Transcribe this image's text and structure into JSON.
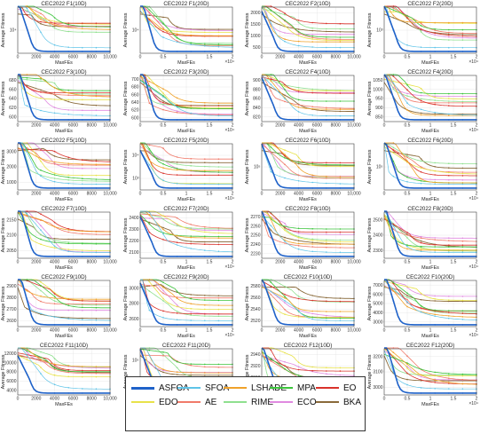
{
  "algorithms": [
    {
      "name": "ASFOA",
      "color": "#1f62c9",
      "width": 1.6
    },
    {
      "name": "SFOA",
      "color": "#5fc4e8",
      "width": 0.7
    },
    {
      "name": "LSHADE",
      "color": "#f0a22a",
      "width": 0.8
    },
    {
      "name": "MPA",
      "color": "#3cc43c",
      "width": 0.8
    },
    {
      "name": "EO",
      "color": "#d9322b",
      "width": 0.8
    },
    {
      "name": "EDO",
      "color": "#e8e24a",
      "width": 0.8
    },
    {
      "name": "AE",
      "color": "#f07a6a",
      "width": 0.8
    },
    {
      "name": "RIME",
      "color": "#8fe08f",
      "width": 0.8
    },
    {
      "name": "ECO",
      "color": "#e08ae0",
      "width": 0.8
    },
    {
      "name": "BKA",
      "color": "#8a6a3a",
      "width": 0.9
    }
  ],
  "chart_data": [
    {
      "type": "line",
      "title": "CEC2022  F1(10D)",
      "xlabel": "MaxFEs",
      "ylabel": "Average Fitness",
      "xlim": [
        0,
        10000
      ],
      "xticks": [
        "0",
        "2000",
        "4000",
        "6000",
        "8000",
        "10,000"
      ],
      "yscale": "log",
      "yticks": [
        "10⁴"
      ],
      "xexp": ""
    },
    {
      "type": "line",
      "title": "CEC2022  F1(20D)",
      "xlabel": "MaxFEs",
      "ylabel": "Average Fitness",
      "xlim": [
        0,
        2
      ],
      "xticks": [
        "0",
        "0.5",
        "1",
        "1.5",
        "2"
      ],
      "yscale": "log",
      "yticks": [
        "10⁴"
      ],
      "xexp": "×10⁴"
    },
    {
      "type": "line",
      "title": "CEC2022  F2(10D)",
      "xlabel": "MaxFEs",
      "ylabel": "Average Fitness",
      "xlim": [
        0,
        10000
      ],
      "xticks": [
        "0",
        "2000",
        "4000",
        "6000",
        "8000",
        "10,000"
      ],
      "yscale": "linear",
      "yticks": [
        "2000",
        "1500",
        "1000",
        "500"
      ],
      "xexp": ""
    },
    {
      "type": "line",
      "title": "CEC2022  F2(20D)",
      "xlabel": "MaxFEs",
      "ylabel": "Average Fitness",
      "xlim": [
        0,
        2
      ],
      "xticks": [
        "0",
        "0.5",
        "1",
        "1.5",
        "2"
      ],
      "yscale": "log",
      "yticks": [
        "10³"
      ],
      "xexp": "×10⁴"
    },
    {
      "type": "line",
      "title": "CEC2022  F3(10D)",
      "xlabel": "MaxFEs",
      "ylabel": "Average Fitness",
      "xlim": [
        0,
        10000
      ],
      "xticks": [
        "0",
        "2000",
        "4000",
        "6000",
        "8000",
        "10,000"
      ],
      "yscale": "linear",
      "yticks": [
        "680",
        "660",
        "640",
        "620",
        "600"
      ],
      "xexp": ""
    },
    {
      "type": "line",
      "title": "CEC2022  F3(20D)",
      "xlabel": "MaxFEs",
      "ylabel": "Average Fitness",
      "xlim": [
        0,
        2
      ],
      "xticks": [
        "0",
        "0.5",
        "1",
        "1.5",
        "2"
      ],
      "yscale": "linear",
      "yticks": [
        "700",
        "680",
        "660",
        "640",
        "620",
        "600"
      ],
      "xexp": "×10⁴"
    },
    {
      "type": "line",
      "title": "CEC2022  F4(10D)",
      "xlabel": "MaxFEs",
      "ylabel": "Average Fitness",
      "xlim": [
        0,
        10000
      ],
      "xticks": [
        "0",
        "2000",
        "4000",
        "6000",
        "8000",
        "10,000"
      ],
      "yscale": "linear",
      "yticks": [
        "900",
        "880",
        "860",
        "840",
        "820"
      ],
      "xexp": ""
    },
    {
      "type": "line",
      "title": "CEC2022  F4(20D)",
      "xlabel": "MaxFEs",
      "ylabel": "Average Fitness",
      "xlim": [
        0,
        2
      ],
      "xticks": [
        "0",
        "0.5",
        "1",
        "1.5",
        "2"
      ],
      "yscale": "linear",
      "yticks": [
        "1050",
        "1000",
        "950",
        "900",
        "850"
      ],
      "xexp": "×10⁴"
    },
    {
      "type": "line",
      "title": "CEC2022  F5(10D)",
      "xlabel": "MaxFEs",
      "ylabel": "Average Fitness",
      "xlim": [
        0,
        10000
      ],
      "xticks": [
        "0",
        "2000",
        "4000",
        "6000",
        "8000",
        "10,000"
      ],
      "yscale": "linear",
      "yticks": [
        "3000",
        "2000",
        "1000"
      ],
      "xexp": ""
    },
    {
      "type": "line",
      "title": "CEC2022  F5(20D)",
      "xlabel": "MaxFEs",
      "ylabel": "Average Fitness",
      "xlim": [
        0,
        2
      ],
      "xticks": [
        "0",
        "0.5",
        "1",
        "1.5",
        "2"
      ],
      "yscale": "log",
      "yticks": [
        "10⁴",
        "10³"
      ],
      "xexp": "×10⁴"
    },
    {
      "type": "line",
      "title": "CEC2022  F6(10D)",
      "xlabel": "MaxFEs",
      "ylabel": "Average Fitness",
      "xlim": [
        0,
        10000
      ],
      "xticks": [
        "0",
        "2000",
        "4000",
        "6000",
        "8000",
        "10,000"
      ],
      "yscale": "log",
      "yticks": [
        "10⁵"
      ],
      "xexp": ""
    },
    {
      "type": "line",
      "title": "CEC2022  F6(20D)",
      "xlabel": "MaxFEs",
      "ylabel": "Average Fitness",
      "xlim": [
        0,
        2
      ],
      "xticks": [
        "0",
        "0.5",
        "1",
        "1.5",
        "2"
      ],
      "yscale": "log",
      "yticks": [
        "10⁵"
      ],
      "xexp": "×10⁴"
    },
    {
      "type": "line",
      "title": "CEC2022  F7(10D)",
      "xlabel": "MaxFEs",
      "ylabel": "Average Fitness",
      "xlim": [
        0,
        10000
      ],
      "xticks": [
        "0",
        "2000",
        "4000",
        "6000",
        "8000",
        "10,000"
      ],
      "yscale": "linear",
      "yticks": [
        "2150",
        "2100",
        "2050"
      ],
      "xexp": ""
    },
    {
      "type": "line",
      "title": "CEC2022  F7(20D)",
      "xlabel": "MaxFEs",
      "ylabel": "Average Fitness",
      "xlim": [
        0,
        2
      ],
      "xticks": [
        "0",
        "0.5",
        "1",
        "1.5",
        "2"
      ],
      "yscale": "linear",
      "yticks": [
        "2400",
        "2300",
        "2200",
        "2100"
      ],
      "xexp": "×10⁴"
    },
    {
      "type": "line",
      "title": "CEC2022  F8(10D)",
      "xlabel": "MaxFEs",
      "ylabel": "Average Fitness",
      "xlim": [
        0,
        10000
      ],
      "xticks": [
        "0",
        "2000",
        "4000",
        "6000",
        "8000",
        "10,000"
      ],
      "yscale": "linear",
      "yticks": [
        "2270",
        "2260",
        "2250",
        "2240",
        "2230"
      ],
      "xexp": ""
    },
    {
      "type": "line",
      "title": "CEC2022  F8(20D)",
      "xlabel": "MaxFEs",
      "ylabel": "Average Fitness",
      "xlim": [
        0,
        2
      ],
      "xticks": [
        "0",
        "0.5",
        "1",
        "1.5",
        "2"
      ],
      "yscale": "linear",
      "yticks": [
        "2500",
        "2400",
        "2300"
      ],
      "xexp": "×10⁴"
    },
    {
      "type": "line",
      "title": "CEC2022  F9(10D)",
      "xlabel": "MaxFEs",
      "ylabel": "Average Fitness",
      "xlim": [
        0,
        10000
      ],
      "xticks": [
        "0",
        "2000",
        "4000",
        "6000",
        "8000",
        "10,000"
      ],
      "yscale": "linear",
      "yticks": [
        "2900",
        "2800",
        "2700",
        "2600"
      ],
      "xexp": ""
    },
    {
      "type": "line",
      "title": "CEC2022  F9(20D)",
      "xlabel": "MaxFEs",
      "ylabel": "Average Fitness",
      "xlim": [
        0,
        2
      ],
      "xticks": [
        "0",
        "0.5",
        "1",
        "1.5",
        "2"
      ],
      "yscale": "linear",
      "yticks": [
        "3000",
        "2800",
        "2600"
      ],
      "xexp": "×10⁴"
    },
    {
      "type": "line",
      "title": "CEC2022  F10(10D)",
      "xlabel": "MaxFEs",
      "ylabel": "Average Fitness",
      "xlim": [
        0,
        10000
      ],
      "xticks": [
        "0",
        "2000",
        "4000",
        "6000",
        "8000",
        "10,000"
      ],
      "yscale": "linear",
      "yticks": [
        "2580",
        "2560",
        "2540",
        "2520"
      ],
      "xexp": ""
    },
    {
      "type": "line",
      "title": "CEC2022  F10(20D)",
      "xlabel": "MaxFEs",
      "ylabel": "Average Fitness",
      "xlim": [
        0,
        2
      ],
      "xticks": [
        "0",
        "0.5",
        "1",
        "1.5",
        "2"
      ],
      "yscale": "linear",
      "yticks": [
        "7000",
        "6000",
        "5000",
        "4000",
        "3000"
      ],
      "xexp": "×10⁴"
    },
    {
      "type": "line",
      "title": "CEC2022  F11(10D)",
      "xlabel": "MaxFEs",
      "ylabel": "Average Fitness",
      "xlim": [
        0,
        10000
      ],
      "xticks": [
        "0",
        "2000",
        "4000",
        "6000",
        "8000",
        "10,000"
      ],
      "yscale": "linear",
      "yticks": [
        "12000",
        "10000",
        "8000",
        "6000",
        "4000"
      ],
      "xexp": ""
    },
    {
      "type": "line",
      "title": "CEC2022  F11(20D)",
      "xlabel": "MaxFEs",
      "ylabel": "Average Fitness",
      "xlim": [
        0,
        2
      ],
      "xticks": [
        "0",
        "0.5",
        "1",
        "1.5",
        "2"
      ],
      "yscale": "log",
      "yticks": [
        "10⁵",
        "10⁴"
      ],
      "xexp": "×10⁴"
    },
    {
      "type": "line",
      "title": "CEC2022  F12(10D)",
      "xlabel": "MaxFEs",
      "ylabel": "Average Fitness",
      "xlim": [
        0,
        10000
      ],
      "xticks": [
        "0",
        "2000",
        "4000",
        "6000",
        "8000",
        "10,000"
      ],
      "yscale": "linear",
      "yticks": [
        "2940",
        "2920",
        "2900",
        "2880"
      ],
      "xexp": ""
    },
    {
      "type": "line",
      "title": "CEC2022  F12(20D)",
      "xlabel": "MaxFEs",
      "ylabel": "Average Fitness",
      "xlim": [
        0,
        2
      ],
      "xticks": [
        "0",
        "0.5",
        "1",
        "1.5",
        "2"
      ],
      "yscale": "linear",
      "yticks": [
        "3200",
        "3100",
        "3000"
      ],
      "xexp": "×10⁴"
    }
  ]
}
